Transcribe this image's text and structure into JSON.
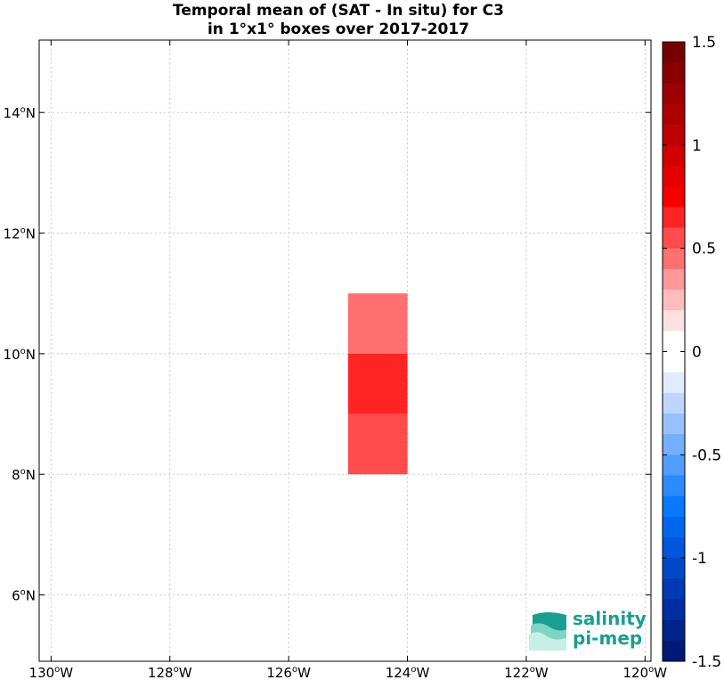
{
  "chart_data": {
    "type": "heatmap",
    "title_line1": "Temporal mean of (SAT - In situ) for C3",
    "title_line2": "in 1°x1° boxes over 2017-2017",
    "x_range": [
      -130.2,
      -119.9
    ],
    "y_range": [
      4.9,
      15.2
    ],
    "x_ticks": [
      {
        "value": -130,
        "deg": "130",
        "hemi": "W"
      },
      {
        "value": -128,
        "deg": "128",
        "hemi": "W"
      },
      {
        "value": -126,
        "deg": "126",
        "hemi": "W"
      },
      {
        "value": -124,
        "deg": "124",
        "hemi": "W"
      },
      {
        "value": -122,
        "deg": "122",
        "hemi": "W"
      },
      {
        "value": -120,
        "deg": "120",
        "hemi": "W"
      }
    ],
    "y_ticks": [
      {
        "value": 6,
        "deg": "6",
        "hemi": "N"
      },
      {
        "value": 8,
        "deg": "8",
        "hemi": "N"
      },
      {
        "value": 10,
        "deg": "10",
        "hemi": "N"
      },
      {
        "value": 12,
        "deg": "12",
        "hemi": "N"
      },
      {
        "value": 14,
        "deg": "14",
        "hemi": "N"
      }
    ],
    "grid": true,
    "cells": [
      {
        "lon_min": -125,
        "lon_max": -124,
        "lat_min": 10,
        "lat_max": 11,
        "value": 0.42,
        "color": "#ff7070"
      },
      {
        "lon_min": -125,
        "lon_max": -124,
        "lat_min": 9,
        "lat_max": 10,
        "value": 0.68,
        "color": "#ff2424"
      },
      {
        "lon_min": -125,
        "lon_max": -124,
        "lat_min": 8,
        "lat_max": 9,
        "value": 0.55,
        "color": "#ff4b4b"
      }
    ],
    "colorbar": {
      "range": [
        -1.5,
        1.5
      ],
      "ticks": [
        {
          "value": 1.5,
          "label": "1.5"
        },
        {
          "value": 1,
          "label": "1"
        },
        {
          "value": 0.5,
          "label": "0.5"
        },
        {
          "value": 0,
          "label": "0"
        },
        {
          "value": -0.5,
          "label": "-0.5"
        },
        {
          "value": -1,
          "label": "-1"
        },
        {
          "value": -1.5,
          "label": "-1.5"
        }
      ],
      "colors_top_to_bottom": [
        "#780000",
        "#8a0000",
        "#9c0000",
        "#ae0000",
        "#c00000",
        "#d20000",
        "#e40000",
        "#f60000",
        "#ff2424",
        "#ff4b4b",
        "#ff7070",
        "#ff9898",
        "#ffbcbc",
        "#ffe0e0",
        "#ffffff",
        "#ffffff",
        "#e0ecff",
        "#bcd6ff",
        "#98c2ff",
        "#74aeff",
        "#509cff",
        "#2c8aff",
        "#0878ff",
        "#0066f0",
        "#0056dc",
        "#0048c8",
        "#003ab4",
        "#002ea0",
        "#00238c",
        "#001a78"
      ]
    }
  },
  "logo": {
    "line1": "salinity",
    "line2": "pi-mep"
  }
}
